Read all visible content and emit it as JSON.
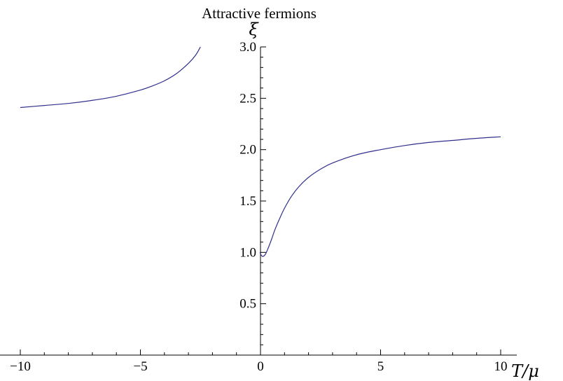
{
  "chart_data": {
    "type": "line",
    "title": "Attractive  fermions",
    "xlabel": "T/μ",
    "ylabel": "ξ",
    "xlim": [
      -10.5,
      10
    ],
    "ylim": [
      0,
      3.0
    ],
    "grid": false,
    "x_ticks": [
      {
        "value": -10,
        "label": "−10"
      },
      {
        "value": -5,
        "label": "−5"
      },
      {
        "value": 0,
        "label": "0"
      },
      {
        "value": 5,
        "label": "5"
      },
      {
        "value": 10,
        "label": "10"
      }
    ],
    "y_ticks": [
      {
        "value": 0.5,
        "label": "0.5"
      },
      {
        "value": 1.0,
        "label": "1.0"
      },
      {
        "value": 1.5,
        "label": "1.5"
      },
      {
        "value": 2.0,
        "label": "2.0"
      },
      {
        "value": 2.5,
        "label": "2.5"
      },
      {
        "value": 3.0,
        "label": "3.0"
      }
    ],
    "series": [
      {
        "color": "#2f2f8c",
        "points": [
          [
            -10,
            2.41
          ],
          [
            -9,
            2.43
          ],
          [
            -8,
            2.45
          ],
          [
            -7,
            2.48
          ],
          [
            -6,
            2.52
          ],
          [
            -5,
            2.58
          ],
          [
            -4.5,
            2.62
          ],
          [
            -4,
            2.67
          ],
          [
            -3.5,
            2.74
          ],
          [
            -3,
            2.84
          ],
          [
            -2.7,
            2.92
          ],
          [
            -2.5,
            3.0
          ]
        ]
      },
      {
        "color": "#2f2f8c",
        "points": [
          [
            -0.02,
            1.0
          ],
          [
            0.0,
            0.985
          ],
          [
            0.04,
            0.97
          ],
          [
            0.1,
            0.96
          ],
          [
            0.2,
            0.98
          ],
          [
            0.3,
            1.03
          ],
          [
            0.45,
            1.12
          ],
          [
            0.6,
            1.22
          ],
          [
            0.8,
            1.33
          ],
          [
            1.0,
            1.43
          ],
          [
            1.3,
            1.55
          ],
          [
            1.6,
            1.64
          ],
          [
            2.0,
            1.73
          ],
          [
            2.5,
            1.81
          ],
          [
            3.0,
            1.87
          ],
          [
            4.0,
            1.95
          ],
          [
            5.0,
            2.0
          ],
          [
            6.0,
            2.04
          ],
          [
            7.0,
            2.07
          ],
          [
            8.0,
            2.09
          ],
          [
            9.0,
            2.11
          ],
          [
            10.0,
            2.125
          ]
        ]
      }
    ]
  }
}
